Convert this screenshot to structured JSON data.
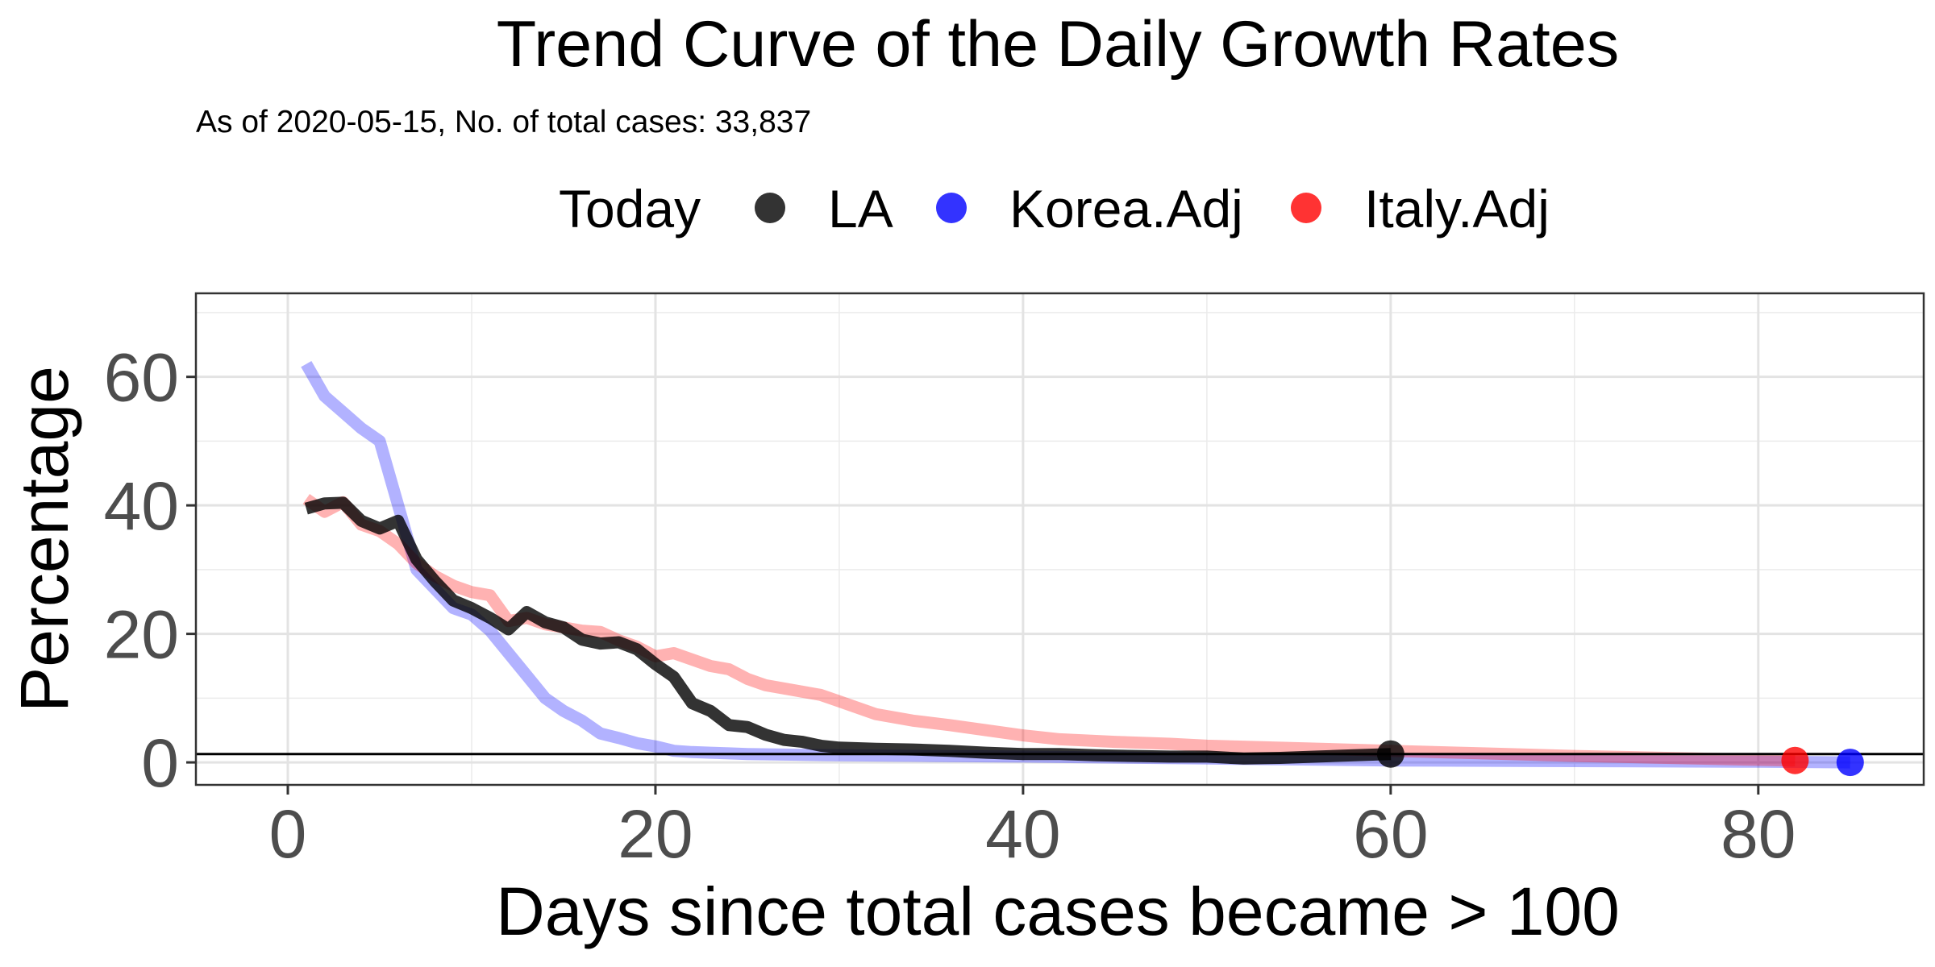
{
  "chart_data": {
    "type": "line",
    "title": "Trend Curve of the Daily Growth Rates",
    "subtitle": "As of 2020-05-15, No. of total cases: 33,837",
    "xlabel": "Days since total cases became > 100",
    "ylabel": "Percentage",
    "xlim": [
      -5,
      89
    ],
    "ylim": [
      -3.5,
      73
    ],
    "x_ticks": [
      0,
      20,
      40,
      60,
      80
    ],
    "y_ticks": [
      0,
      20,
      40,
      60
    ],
    "x_tick_labels": [
      "0",
      "20",
      "40",
      "60",
      "80"
    ],
    "y_tick_labels": [
      "0",
      "20",
      "40",
      "60"
    ],
    "grid": true,
    "legend": {
      "title": "Today",
      "position": "top"
    },
    "reference_line": {
      "y": 1.3,
      "color": "#000000"
    },
    "series": [
      {
        "name": "Korea.Adj",
        "color": "#0000ff",
        "opacity": 0.3,
        "x": [
          1,
          2,
          3,
          4,
          5,
          6,
          7,
          8,
          9,
          10,
          11,
          12,
          13,
          14,
          15,
          16,
          17,
          18,
          19,
          20,
          21,
          22,
          23,
          24,
          25,
          30,
          35,
          40,
          50,
          60,
          70,
          80,
          85
        ],
        "y": [
          62,
          57,
          54.5,
          52,
          50,
          40,
          30,
          27,
          24,
          23,
          20.5,
          17,
          13.5,
          10,
          8,
          6.5,
          4.5,
          3.8,
          3,
          2.5,
          1.8,
          1.6,
          1.5,
          1.4,
          1.3,
          1.1,
          1.0,
          0.9,
          0.6,
          0.3,
          0.2,
          0.1,
          0
        ]
      },
      {
        "name": "Italy.Adj",
        "color": "#ff0000",
        "opacity": 0.3,
        "x": [
          1,
          2,
          3,
          4,
          5,
          6,
          7,
          8,
          9,
          10,
          11,
          12,
          13,
          14,
          15,
          16,
          17,
          18,
          19,
          20,
          21,
          22,
          23,
          24,
          25,
          26,
          27,
          28,
          29,
          30,
          32,
          34,
          36,
          38,
          40,
          42,
          45,
          48,
          50,
          55,
          60,
          65,
          70,
          75,
          80,
          82
        ],
        "y": [
          41,
          39,
          40.5,
          37,
          36,
          34,
          31,
          29,
          27.5,
          26.5,
          26,
          22,
          22.5,
          21.5,
          21,
          20.5,
          20.3,
          19,
          18,
          16.5,
          17,
          16,
          15,
          14.5,
          13,
          12,
          11.5,
          11,
          10.5,
          9.5,
          7.5,
          6.5,
          5.8,
          5,
          4.2,
          3.6,
          3.2,
          2.9,
          2.6,
          2.2,
          1.8,
          1.4,
          1.0,
          0.7,
          0.4,
          0.3
        ]
      },
      {
        "name": "LA",
        "color": "#000000",
        "opacity": 0.8,
        "x": [
          1,
          2,
          3,
          4,
          5,
          6,
          7,
          8,
          9,
          10,
          11,
          12,
          13,
          14,
          15,
          16,
          17,
          18,
          19,
          20,
          21,
          22,
          23,
          24,
          25,
          26,
          27,
          28,
          29,
          30,
          32,
          34,
          36,
          38,
          40,
          42,
          44,
          46,
          48,
          50,
          52,
          54,
          56,
          58,
          60
        ],
        "y": [
          39.5,
          40.3,
          40.4,
          37.6,
          36.4,
          37.6,
          31.6,
          28.2,
          25.2,
          24,
          22.5,
          20.7,
          23.4,
          21.8,
          21,
          19.1,
          18.5,
          18.7,
          17.6,
          15.3,
          13.3,
          9.2,
          8,
          5.8,
          5.5,
          4.3,
          3.5,
          3.2,
          2.6,
          2.3,
          2.1,
          2.0,
          1.8,
          1.5,
          1.3,
          1.3,
          1.1,
          1.0,
          0.9,
          0.9,
          0.6,
          0.7,
          0.9,
          1.1,
          1.3
        ]
      }
    ],
    "end_points": [
      {
        "series": "LA",
        "x": 60,
        "y": 1.3,
        "color": "#000000",
        "opacity": 0.8
      },
      {
        "series": "Korea.Adj",
        "x": 85,
        "y": 0,
        "color": "#0000ff",
        "opacity": 0.8
      },
      {
        "series": "Italy.Adj",
        "x": 82,
        "y": 0.3,
        "color": "#ff0000",
        "opacity": 0.8
      }
    ]
  }
}
